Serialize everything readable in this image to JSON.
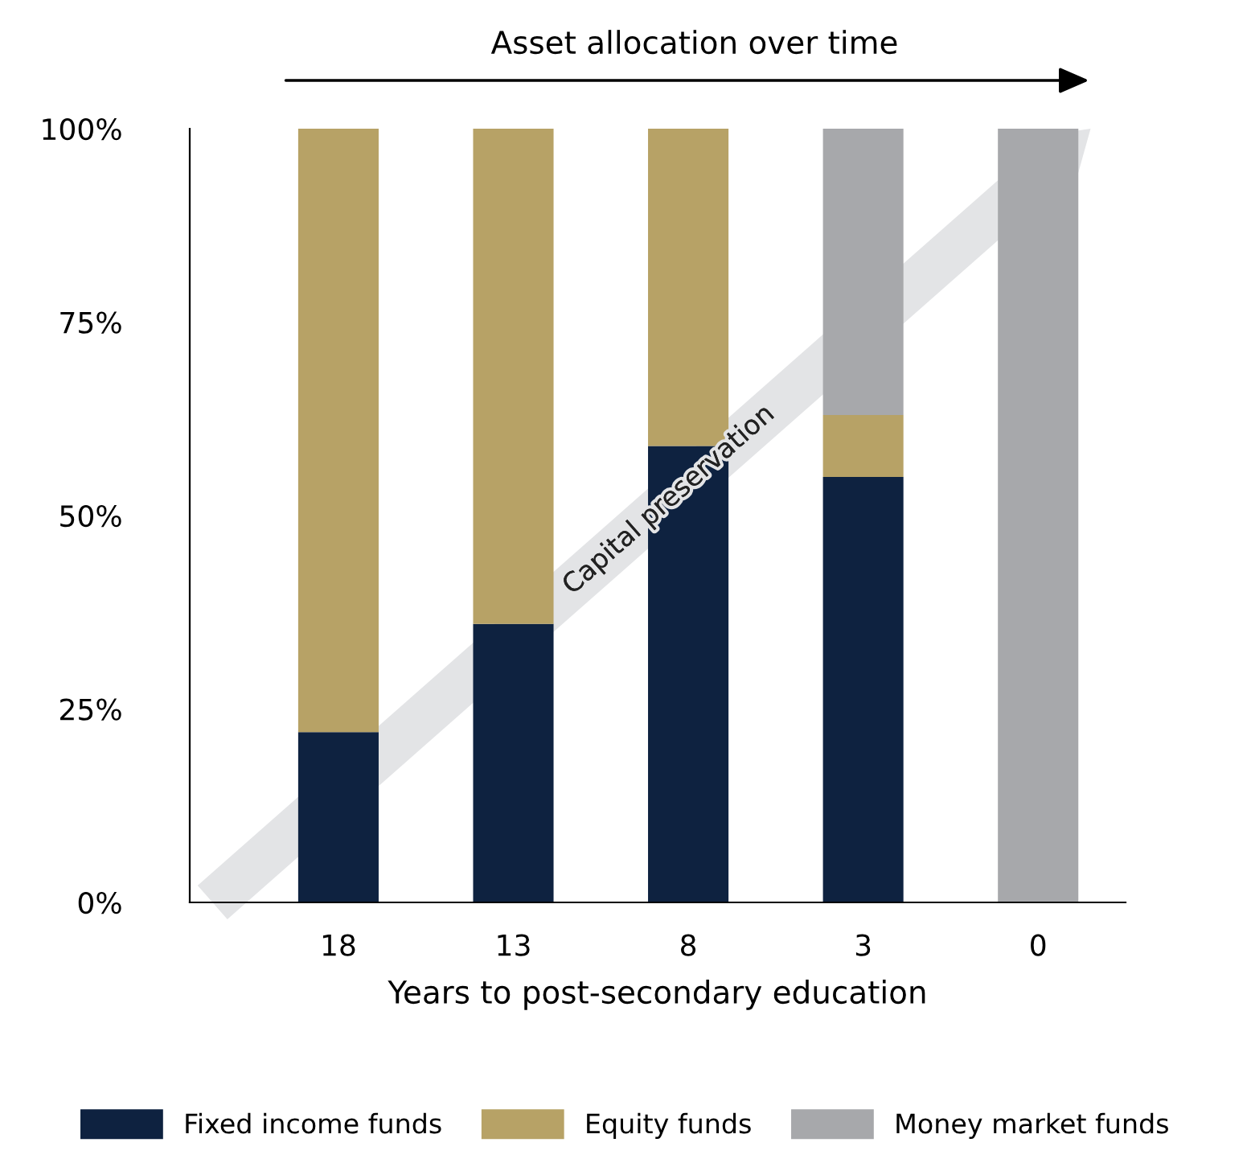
{
  "chart_data": {
    "type": "bar",
    "stacked": true,
    "title": "Asset allocation over time",
    "xlabel": "Years to post-secondary education",
    "categories": [
      "18",
      "13",
      "8",
      "3",
      "0"
    ],
    "series": [
      {
        "name": "Fixed income funds",
        "color": "#0e2240",
        "values": [
          22,
          36,
          59,
          55,
          0
        ]
      },
      {
        "name": "Equity funds",
        "color": "#b7a266",
        "values": [
          78,
          64,
          41,
          8,
          0
        ]
      },
      {
        "name": "Money market funds",
        "color": "#a7a8ab",
        "values": [
          0,
          0,
          0,
          37,
          100
        ]
      }
    ],
    "ylim": [
      0,
      100
    ],
    "yticks": [
      {
        "value": 0,
        "label": "0%"
      },
      {
        "value": 25,
        "label": "25%"
      },
      {
        "value": 50,
        "label": "50%"
      },
      {
        "value": 75,
        "label": "75%"
      },
      {
        "value": 100,
        "label": "100%"
      }
    ],
    "grid": false,
    "legend": "bottom",
    "annotations": [
      "Capital preservation"
    ]
  }
}
